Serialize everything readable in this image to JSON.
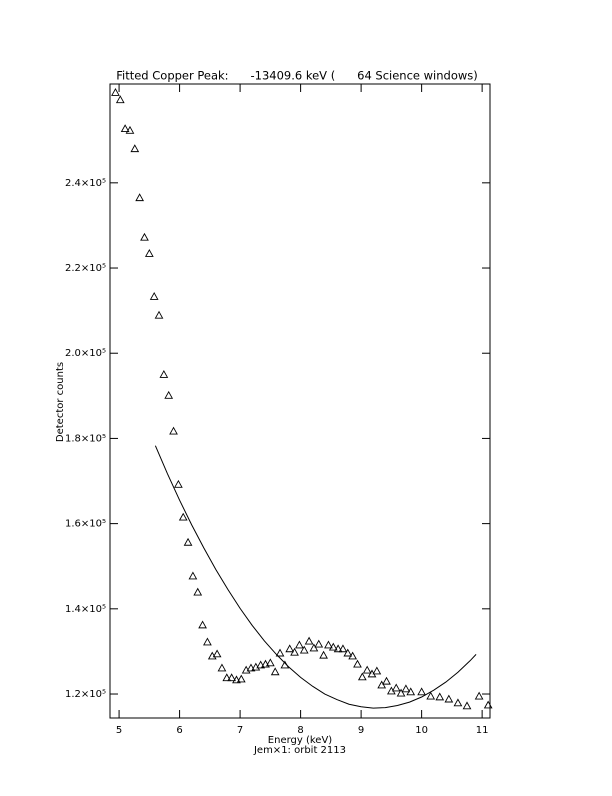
{
  "chart_data": {
    "type": "scatter",
    "title": "Fitted Copper Peak:      -13409.6 keV (      64 Science windows)",
    "x_label": "Energy (keV)",
    "subtitle": "Jem×1: orbit 2113",
    "y_label": "Detector counts",
    "xlim": [
      4.85,
      11.13
    ],
    "ylim": [
      114370,
      263200
    ],
    "xticks": [
      5,
      6,
      7,
      8,
      9,
      10,
      11
    ],
    "yticks": [
      {
        "value": 120000,
        "label": "1.2×10⁵"
      },
      {
        "value": 140000,
        "label": "1.4×10⁵"
      },
      {
        "value": 160000,
        "label": "1.6×10⁵"
      },
      {
        "value": 180000,
        "label": "1.8×10⁵"
      },
      {
        "value": 200000,
        "label": "2.0×10⁵"
      },
      {
        "value": 220000,
        "label": "2.2×10⁵"
      },
      {
        "value": 240000,
        "label": "2.4×10⁵"
      }
    ],
    "grid": false,
    "series": [
      {
        "style": "triangle",
        "color": "#000000",
        "x": [
          4.94,
          5.02,
          5.1,
          5.18,
          5.26,
          5.34,
          5.42,
          5.5,
          5.58,
          5.66,
          5.74,
          5.82,
          5.9,
          5.98,
          6.06,
          6.14,
          6.22,
          6.3,
          6.38,
          6.46,
          6.54,
          6.62,
          6.7,
          6.78,
          6.86,
          6.94,
          7.02,
          7.1,
          7.18,
          7.26,
          7.34,
          7.42,
          7.5,
          7.58,
          7.66,
          7.74,
          7.82,
          7.9,
          7.98,
          8.06,
          8.14,
          8.22,
          8.3,
          8.38,
          8.46,
          8.54,
          8.62,
          8.7,
          8.78,
          8.86,
          8.94,
          9.02,
          9.1,
          9.18,
          9.26,
          9.34,
          9.42,
          9.5,
          9.58,
          9.66,
          9.74,
          9.82,
          10.0,
          10.15,
          10.3,
          10.45,
          10.6,
          10.75,
          10.95,
          11.1
        ],
        "values": [
          261200,
          259500,
          252700,
          252300,
          248000,
          236500,
          227200,
          223400,
          213300,
          208900,
          195000,
          190100,
          181700,
          169200,
          161500,
          155600,
          147700,
          143900,
          136200,
          132200,
          128900,
          129400,
          126100,
          123800,
          123800,
          123300,
          123500,
          125600,
          126100,
          126300,
          126800,
          127000,
          127300,
          125200,
          129600,
          126800,
          130600,
          129800,
          131500,
          130300,
          132400,
          130800,
          131700,
          129100,
          131500,
          131000,
          130600,
          130600,
          129600,
          128900,
          127000,
          124000,
          125600,
          124700,
          125400,
          122100,
          123000,
          120700,
          121400,
          120200,
          121200,
          120500,
          120500,
          119500,
          119300,
          118800,
          117900,
          117200,
          119500,
          117400
        ]
      },
      {
        "style": "line",
        "color": "#000000",
        "x": [
          5.6,
          5.8,
          6.0,
          6.2,
          6.4,
          6.6,
          6.8,
          7.0,
          7.2,
          7.4,
          7.6,
          7.8,
          8.0,
          8.2,
          8.4,
          8.6,
          8.8,
          9.0,
          9.2,
          9.4,
          9.6,
          9.8,
          10.0,
          10.2,
          10.4,
          10.6,
          10.8,
          10.9
        ],
        "values": [
          178300,
          171700,
          165500,
          159700,
          154300,
          149200,
          144500,
          140100,
          136100,
          132500,
          129300,
          126400,
          123900,
          121800,
          120000,
          118700,
          117600,
          117000,
          116700,
          116800,
          117300,
          118100,
          119300,
          120900,
          122800,
          125100,
          127800,
          129300
        ]
      }
    ]
  }
}
